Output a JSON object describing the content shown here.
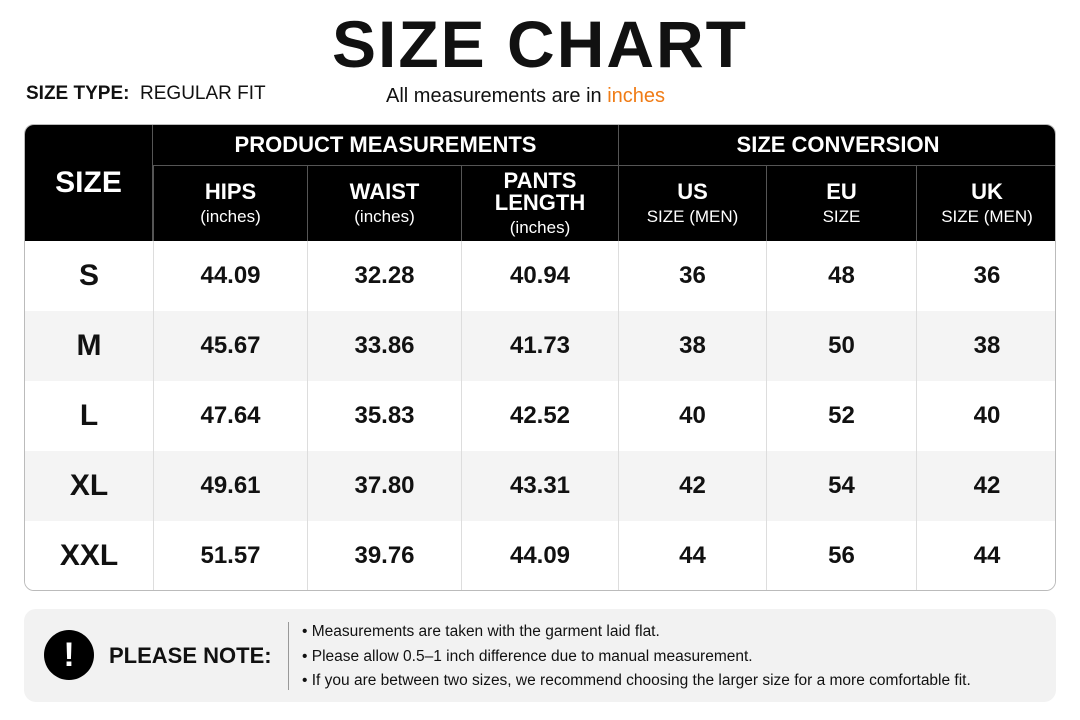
{
  "header": {
    "title": "SIZE CHART",
    "size_type_label": "SIZE TYPE:",
    "size_type_value": "REGULAR FIT",
    "subtitle": "All measurements are in",
    "subtitle_unit": "inches"
  },
  "table": {
    "size_header": "SIZE",
    "groups": [
      "PRODUCT MEASUREMENTS",
      "SIZE CONVERSION"
    ],
    "columns": [
      {
        "title": "HIPS",
        "sub": "(inches)"
      },
      {
        "title": "WAIST",
        "sub": "(inches)"
      },
      {
        "title": "PANTS LENGTH",
        "sub": "(inches)"
      },
      {
        "title": "US",
        "sub": "SIZE (MEN)"
      },
      {
        "title": "EU",
        "sub": "SIZE"
      },
      {
        "title": "UK",
        "sub": "SIZE (MEN)"
      }
    ],
    "rows": [
      [
        "S",
        "44.09",
        "32.28",
        "40.94",
        "36",
        "48",
        "36"
      ],
      [
        "M",
        "45.67",
        "33.86",
        "41.73",
        "38",
        "50",
        "38"
      ],
      [
        "L",
        "47.64",
        "35.83",
        "42.52",
        "40",
        "52",
        "40"
      ],
      [
        "XL",
        "49.61",
        "37.80",
        "43.31",
        "42",
        "54",
        "42"
      ],
      [
        "XXL",
        "51.57",
        "39.76",
        "44.09",
        "44",
        "56",
        "44"
      ]
    ]
  },
  "note": {
    "label": "PLEASE NOTE:",
    "items": [
      "Measurements are taken with the garment laid flat.",
      "Please allow 0.5–1 inch difference due to manual measurement.",
      "If you are between two sizes, we recommend choosing the larger size for a more comfortable fit."
    ]
  }
}
